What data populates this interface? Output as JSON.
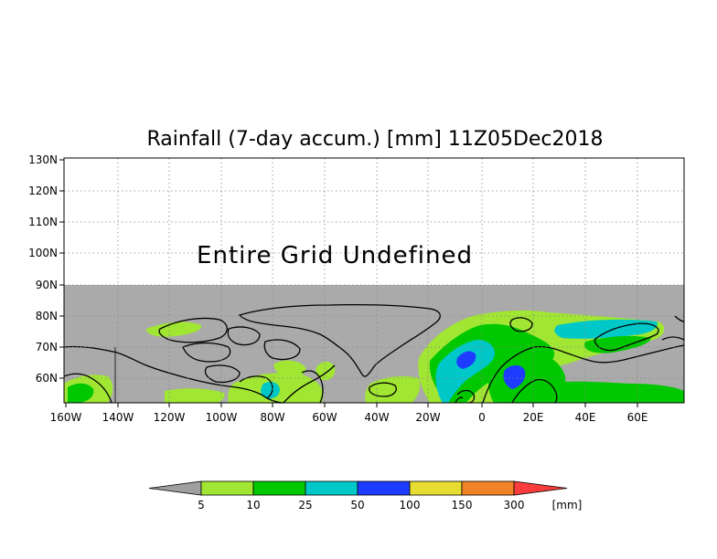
{
  "title": "Rainfall (7-day accum.) [mm] 11Z05Dec2018",
  "note": "Entire Grid Undefined",
  "lat_labels": [
    "130N",
    "120N",
    "110N",
    "100N",
    "90N",
    "80N",
    "70N",
    "60N"
  ],
  "lon_labels": [
    "160W",
    "140W",
    "120W",
    "100W",
    "80W",
    "60W",
    "40W",
    "20W",
    "0",
    "20E",
    "40E",
    "60E"
  ],
  "colorbar": {
    "values": [
      "5",
      "10",
      "25",
      "50",
      "100",
      "150",
      "300"
    ],
    "unit": "[mm]",
    "colors": [
      "#a0a0a0",
      "#a0e632",
      "#00c800",
      "#00c8c8",
      "#1e3cff",
      "#e6dc32",
      "#f08228",
      "#fa3c3c"
    ]
  },
  "colors": {
    "undefined_region": "#aaaaaa",
    "coastline": "#000000",
    "grid": "#888888"
  }
}
